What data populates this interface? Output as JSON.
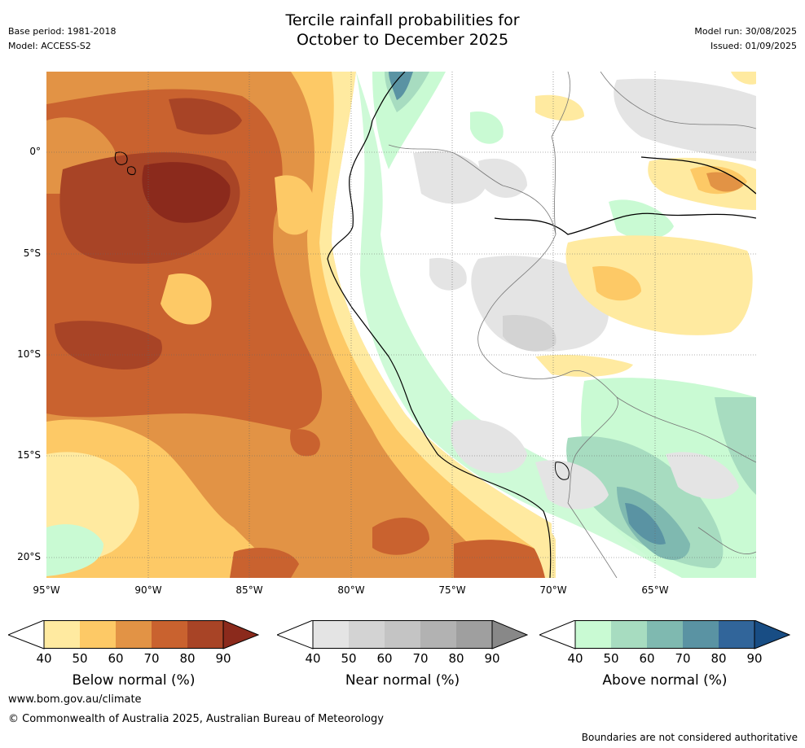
{
  "header": {
    "title_line1": "Tercile rainfall probabilities for",
    "title_line2": "October to December 2025",
    "base_period": "Base period: 1981-2018",
    "model": "Model: ACCESS-S2",
    "model_run": "Model run: 30/08/2025",
    "issued": "Issued: 01/09/2025"
  },
  "map": {
    "lat_labels": [
      "0°",
      "5°S",
      "10°S",
      "15°S",
      "20°S"
    ],
    "lon_labels": [
      "95°W",
      "90°W",
      "85°W",
      "80°W",
      "75°W",
      "70°W",
      "65°W"
    ]
  },
  "colorbars": [
    {
      "label": "Below normal (%)",
      "ticks": [
        "40",
        "50",
        "60",
        "70",
        "80",
        "90"
      ],
      "colors": [
        "#ffffff",
        "#ffeaa0",
        "#fdc966",
        "#e29345",
        "#c9622f",
        "#a84426",
        "#8b2a1c"
      ]
    },
    {
      "label": "Near normal (%)",
      "ticks": [
        "40",
        "50",
        "60",
        "70",
        "80",
        "90"
      ],
      "colors": [
        "#ffffff",
        "#e4e4e4",
        "#d3d3d3",
        "#c4c4c4",
        "#b2b2b2",
        "#9f9f9f",
        "#888888"
      ]
    },
    {
      "label": "Above normal (%)",
      "ticks": [
        "40",
        "50",
        "60",
        "70",
        "80",
        "90"
      ],
      "colors": [
        "#ffffff",
        "#c9fad3",
        "#a7dcc0",
        "#7fb9b0",
        "#5a93a3",
        "#31659a",
        "#184d84"
      ]
    }
  ],
  "footer": {
    "website": "www.bom.gov.au/climate",
    "copyright": "© Commonwealth of Australia 2025, Australian Bureau of Meteorology",
    "disclaimer": "Boundaries are not considered authoritative"
  }
}
